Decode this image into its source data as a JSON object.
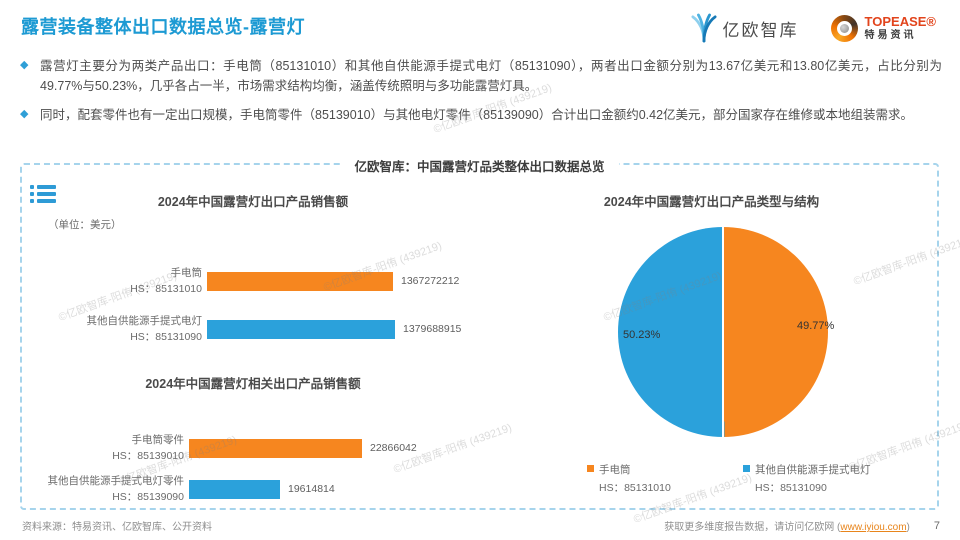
{
  "header": {
    "title": "露营装备整体出口数据总览-露营灯",
    "logos": {
      "yiou": "亿欧智库",
      "topease_en": "TOPEASE®",
      "topease_cn": "特易资讯"
    }
  },
  "bullets": [
    "露营灯主要分为两类产品出口：手电筒（85131010）和其他自供能源手提式电灯（85131090），两者出口金额分别为13.67亿美元和13.80亿美元，占比分别为49.77%与50.23%，几乎各占一半，市场需求结构均衡，涵盖传统照明与多功能露营灯具。",
    "同时，配套零件也有一定出口规模，手电筒零件（85139010）与其他电灯零件（85139090）合计出口金额约0.42亿美元，部分国家存在维修或本地组装需求。"
  ],
  "panel": {
    "title": "亿欧智库：中国露营灯品类整体出口数据总览"
  },
  "chart_data": [
    {
      "type": "bar",
      "orientation": "horizontal",
      "title": "2024年中国露营灯出口产品销售额",
      "unit": "（单位：美元）",
      "categories": [
        "手电筒",
        "其他自供能源手提式电灯"
      ],
      "hs_codes": [
        "HS：85131010",
        "HS：85131090"
      ],
      "values": [
        1367272212,
        1379688915
      ],
      "colors": [
        "#F6861F",
        "#2BA1DB"
      ],
      "bar_widths": [
        "186px",
        "188px"
      ]
    },
    {
      "type": "bar",
      "orientation": "horizontal",
      "title": "2024年中国露营灯相关出口产品销售额",
      "categories": [
        "手电筒零件",
        "其他自供能源手提式电灯零件"
      ],
      "hs_codes": [
        "HS：85139010",
        "HS：85139090"
      ],
      "values": [
        22866042,
        19614814
      ],
      "colors": [
        "#F6861F",
        "#2BA1DB"
      ],
      "bar_widths": [
        "173px",
        "91px"
      ]
    },
    {
      "type": "pie",
      "title": "2024年中国露营灯出口产品类型与结构",
      "legend_position": "bottom",
      "slices": [
        {
          "label": "手电筒",
          "hs": "HS：85131010",
          "value": 49.77,
          "display": "49.77%",
          "color": "#F6861F"
        },
        {
          "label": "其他自供能源手提式电灯",
          "hs": "HS：85131090",
          "value": 50.23,
          "display": "50.23%",
          "color": "#2BA1DB"
        }
      ]
    }
  ],
  "watermark": "©亿欧智库-阳侑 (439219)",
  "footer": {
    "source": "资料来源：特易资讯、亿欧智库、公开资料",
    "cta_prefix": "获取更多维度报告数据，请访问亿欧网 (",
    "cta_link": "www.iyiou.com",
    "cta_suffix": ")",
    "page": "7"
  }
}
